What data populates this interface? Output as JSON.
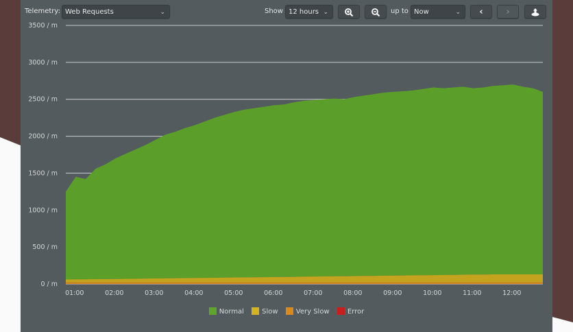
{
  "toolbar": {
    "telemetry_label": "Telemetry:",
    "telemetry_value": "Web Requests",
    "show_label": "Show",
    "show_value": "12 hours",
    "zoom_in_icon": "zoom-in-icon",
    "zoom_out_icon": "zoom-out-icon",
    "up_to_label": "up to",
    "up_to_value": "Now",
    "prev_icon": "chevron-left-icon",
    "next_icon": "chevron-right-icon",
    "export_icon": "export-icon"
  },
  "chart_data": {
    "type": "area",
    "stacked": true,
    "title": "",
    "xlabel": "",
    "ylabel": "",
    "ylim": [
      0,
      3500
    ],
    "yticks": [
      0,
      500,
      1000,
      1500,
      2000,
      2500,
      3000,
      3500
    ],
    "ytick_labels": [
      "0 / m",
      "500 / m",
      "1000 / m",
      "1500 / m",
      "2000 / m",
      "2500 / m",
      "3000 / m",
      "3500 / m"
    ],
    "xlim_hours": [
      0.78,
      12.78
    ],
    "xticks_hours": [
      1,
      2,
      3,
      4,
      5,
      6,
      7,
      8,
      9,
      10,
      11,
      12
    ],
    "xtick_labels": [
      "01:00",
      "02:00",
      "03:00",
      "04:00",
      "05:00",
      "06:00",
      "07:00",
      "08:00",
      "09:00",
      "10:00",
      "11:00",
      "12:00"
    ],
    "x_start_hour": 0.78,
    "x_step_hours": 0.25,
    "grid": true,
    "legend_position": "bottom",
    "series": [
      {
        "name": "Error",
        "color": "#c8201e",
        "values": [
          0,
          0,
          0,
          0,
          0,
          0,
          0,
          0,
          0,
          0,
          0,
          0,
          0,
          0,
          0,
          0,
          0,
          0,
          0,
          0,
          0,
          0,
          0,
          0,
          0,
          0,
          0,
          0,
          0,
          0,
          0,
          0,
          0,
          0,
          0,
          0,
          0,
          0,
          0,
          0,
          0,
          0,
          0,
          0,
          0,
          0,
          0,
          0,
          0
        ]
      },
      {
        "name": "Very Slow",
        "color": "#d5821c",
        "values": [
          20,
          20,
          20,
          20,
          20,
          20,
          20,
          20,
          20,
          20,
          20,
          20,
          20,
          20,
          20,
          20,
          20,
          20,
          20,
          20,
          20,
          20,
          20,
          20,
          20,
          20,
          20,
          20,
          20,
          20,
          20,
          20,
          20,
          20,
          20,
          20,
          20,
          20,
          20,
          20,
          20,
          20,
          20,
          20,
          20,
          20,
          20,
          20,
          20
        ]
      },
      {
        "name": "Slow",
        "color": "#c4a41f",
        "values": [
          40,
          42,
          43,
          45,
          46,
          48,
          50,
          51,
          53,
          55,
          56,
          58,
          59,
          61,
          63,
          64,
          66,
          68,
          69,
          71,
          72,
          74,
          76,
          77,
          79,
          81,
          82,
          84,
          85,
          87,
          89,
          90,
          92,
          94,
          95,
          97,
          98,
          100,
          102,
          103,
          105,
          107,
          108,
          110,
          110,
          110,
          110,
          110,
          110
        ]
      },
      {
        "name": "Normal",
        "color": "#5c9e2a",
        "values": [
          1190,
          1388,
          1357,
          1495,
          1554,
          1632,
          1690,
          1749,
          1807,
          1875,
          1944,
          1982,
          2031,
          2069,
          2117,
          2166,
          2204,
          2242,
          2271,
          2289,
          2308,
          2326,
          2334,
          2363,
          2381,
          2389,
          2398,
          2406,
          2395,
          2423,
          2441,
          2460,
          2478,
          2486,
          2495,
          2503,
          2522,
          2540,
          2528,
          2537,
          2545,
          2523,
          2532,
          2550,
          2560,
          2570,
          2540,
          2520,
          2470
        ]
      }
    ]
  },
  "legend": [
    {
      "label": "Normal",
      "color": "#5fa52b"
    },
    {
      "label": "Slow",
      "color": "#d4b423"
    },
    {
      "label": "Very Slow",
      "color": "#d98a1c"
    },
    {
      "label": "Error",
      "color": "#c81e1e"
    }
  ]
}
